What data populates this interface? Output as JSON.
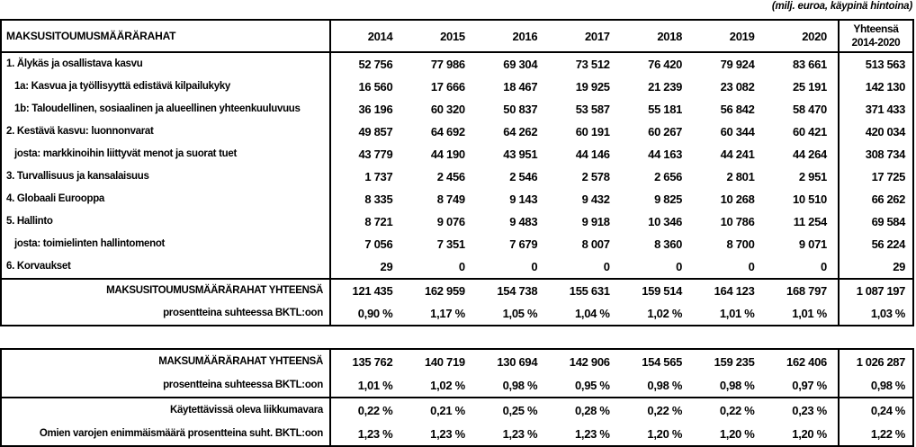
{
  "note": "(milj. euroa, käypinä hintoina)",
  "commitments_table": {
    "header_label": "MAKSUSITOUMUSMÄÄRÄRAHAT",
    "years": [
      "2014",
      "2015",
      "2016",
      "2017",
      "2018",
      "2019",
      "2020"
    ],
    "total_header": {
      "line1": "Yhteensä",
      "line2": "2014-2020"
    },
    "rows": [
      {
        "label": "1. Älykäs ja osallistava kasvu",
        "indent": false,
        "values": [
          "52 756",
          "77 986",
          "69 304",
          "73 512",
          "76 420",
          "79 924",
          "83 661",
          "513 563"
        ]
      },
      {
        "label": "1a: Kasvua ja työllisyyttä edistävä kilpailukyky",
        "indent": true,
        "values": [
          "16 560",
          "17 666",
          "18 467",
          "19 925",
          "21 239",
          "23 082",
          "25 191",
          "142 130"
        ]
      },
      {
        "label": "1b: Taloudellinen, sosiaalinen ja alueellinen yhteenkuuluvuus",
        "indent": true,
        "values": [
          "36 196",
          "60 320",
          "50 837",
          "53 587",
          "55 181",
          "56 842",
          "58 470",
          "371 433"
        ]
      },
      {
        "label": "2. Kestävä kasvu: luonnonvarat",
        "indent": false,
        "values": [
          "49 857",
          "64 692",
          "64 262",
          "60 191",
          "60 267",
          "60 344",
          "60 421",
          "420 034"
        ]
      },
      {
        "label": "josta: markkinoihin liittyvät menot ja suorat tuet",
        "indent": true,
        "values": [
          "43 779",
          "44 190",
          "43 951",
          "44 146",
          "44 163",
          "44 241",
          "44 264",
          "308 734"
        ]
      },
      {
        "label": "3. Turvallisuus ja kansalaisuus",
        "indent": false,
        "values": [
          "1 737",
          "2 456",
          "2 546",
          "2 578",
          "2 656",
          "2 801",
          "2 951",
          "17 725"
        ]
      },
      {
        "label": "4. Globaali Eurooppa",
        "indent": false,
        "values": [
          "8 335",
          "8 749",
          "9 143",
          "9 432",
          "9 825",
          "10 268",
          "10 510",
          "66 262"
        ]
      },
      {
        "label": "5. Hallinto",
        "indent": false,
        "values": [
          "8 721",
          "9 076",
          "9 483",
          "9 918",
          "10 346",
          "10 786",
          "11 254",
          "69 584"
        ]
      },
      {
        "label": "josta: toimielinten hallintomenot",
        "indent": true,
        "values": [
          "7 056",
          "7 351",
          "7 679",
          "8 007",
          "8 360",
          "8 700",
          "9 071",
          "56 224"
        ]
      },
      {
        "label": "6. Korvaukset",
        "indent": false,
        "values": [
          "29",
          "0",
          "0",
          "0",
          "0",
          "0",
          "0",
          "29"
        ]
      }
    ],
    "total_rows": [
      {
        "label": "MAKSUSITOUMUSMÄÄRÄRAHAT YHTEENSÄ",
        "values": [
          "121 435",
          "162 959",
          "154 738",
          "155 631",
          "159 514",
          "164 123",
          "168 797",
          "1 087 197"
        ]
      },
      {
        "label": "prosentteina suhteessa BKTL:oon",
        "values": [
          "0,90 %",
          "1,17 %",
          "1,05 %",
          "1,04 %",
          "1,02 %",
          "1,01 %",
          "1,01 %",
          "1,03 %"
        ]
      }
    ]
  },
  "payments_table": {
    "group1": [
      {
        "label": "MAKSUMÄÄRÄRAHAT YHTEENSÄ",
        "values": [
          "135 762",
          "140 719",
          "130 694",
          "142 906",
          "154 565",
          "159 235",
          "162 406",
          "1 026 287"
        ]
      },
      {
        "label": "prosentteina suhteessa BKTL:oon",
        "values": [
          "1,01 %",
          "1,02 %",
          "0,98 %",
          "0,95 %",
          "0,98 %",
          "0,98 %",
          "0,97 %",
          "0,98 %"
        ]
      }
    ],
    "group2": [
      {
        "label": "Käytettävissä oleva liikkumavara",
        "values": [
          "0,22 %",
          "0,21 %",
          "0,25 %",
          "0,28 %",
          "0,22 %",
          "0,22 %",
          "0,23 %",
          "0,24 %"
        ]
      },
      {
        "label": "Omien varojen enimmäismäärä prosentteina suht. BKTL:oon",
        "values": [
          "1,23 %",
          "1,23 %",
          "1,23 %",
          "1,23 %",
          "1,20 %",
          "1,20 %",
          "1,20 %",
          "1,22 %"
        ]
      }
    ]
  },
  "colors": {
    "text": "#000000",
    "border": "#000000",
    "background": "#ffffff"
  }
}
